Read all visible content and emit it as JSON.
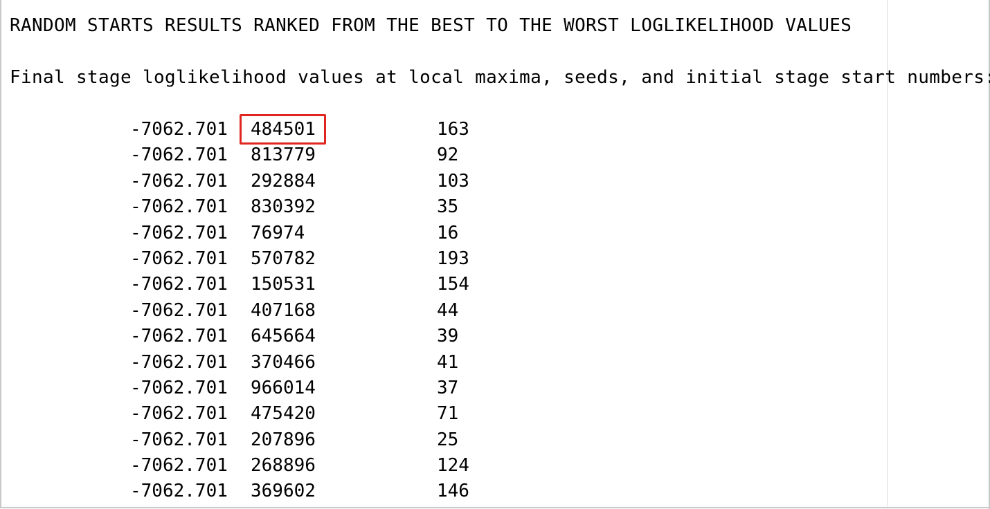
{
  "output": {
    "title": "RANDOM STARTS RESULTS RANKED FROM THE BEST TO THE WORST LOGLIKELIHOOD VALUES",
    "subtitle": "Final stage loglikelihood values at local maxima, seeds, and initial stage start numbers:",
    "rows": [
      {
        "loglikelihood": "-7062.701",
        "seed": "484501",
        "start": "163"
      },
      {
        "loglikelihood": "-7062.701",
        "seed": "813779",
        "start": "92"
      },
      {
        "loglikelihood": "-7062.701",
        "seed": "292884",
        "start": "103"
      },
      {
        "loglikelihood": "-7062.701",
        "seed": "830392",
        "start": "35"
      },
      {
        "loglikelihood": "-7062.701",
        "seed": "76974",
        "start": "16"
      },
      {
        "loglikelihood": "-7062.701",
        "seed": "570782",
        "start": "193"
      },
      {
        "loglikelihood": "-7062.701",
        "seed": "150531",
        "start": "154"
      },
      {
        "loglikelihood": "-7062.701",
        "seed": "407168",
        "start": "44"
      },
      {
        "loglikelihood": "-7062.701",
        "seed": "645664",
        "start": "39"
      },
      {
        "loglikelihood": "-7062.701",
        "seed": "370466",
        "start": "41"
      },
      {
        "loglikelihood": "-7062.701",
        "seed": "966014",
        "start": "37"
      },
      {
        "loglikelihood": "-7062.701",
        "seed": "475420",
        "start": "71"
      },
      {
        "loglikelihood": "-7062.701",
        "seed": "207896",
        "start": "25"
      },
      {
        "loglikelihood": "-7062.701",
        "seed": "268896",
        "start": "124"
      },
      {
        "loglikelihood": "-7062.701",
        "seed": "369602",
        "start": "146"
      }
    ]
  },
  "highlight": {
    "color": "#e0261e",
    "target": "seed of first row"
  }
}
